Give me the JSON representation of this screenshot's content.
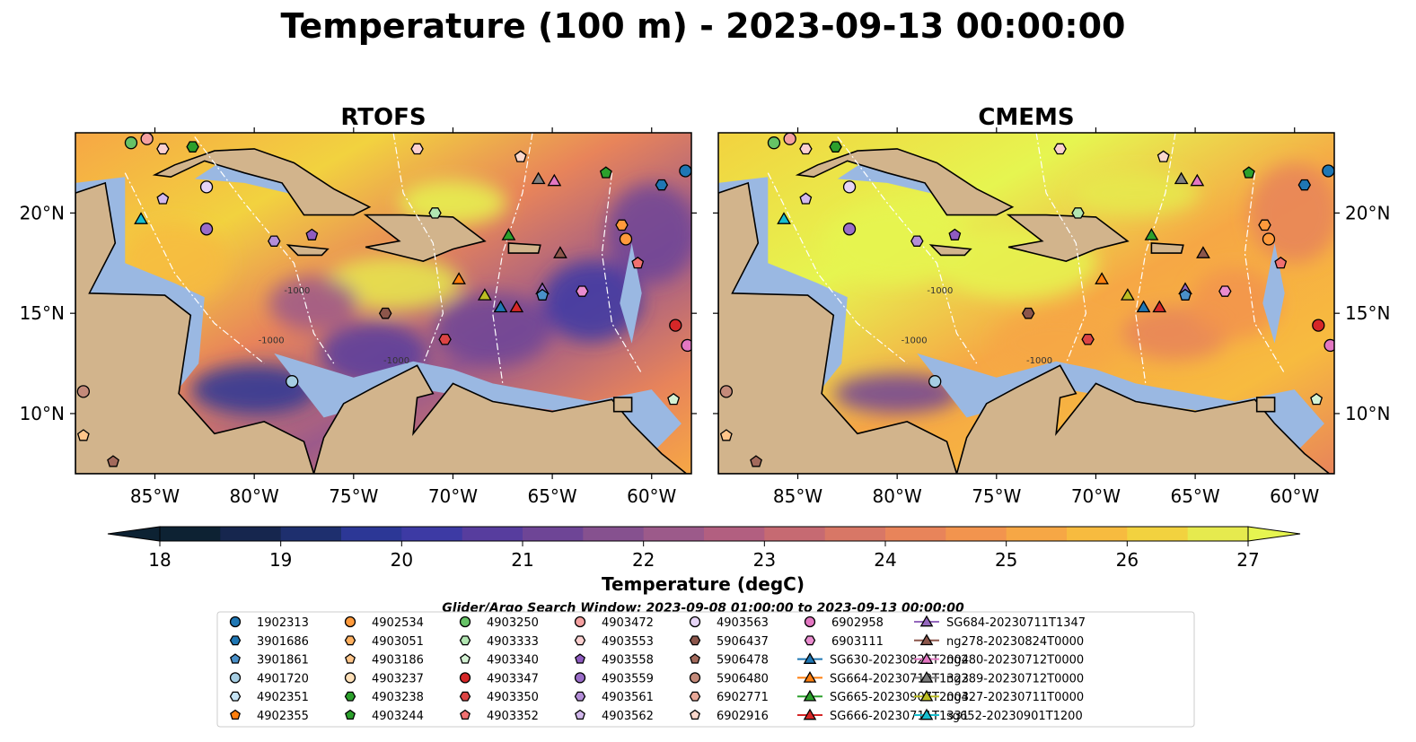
{
  "title": "Temperature (100 m) - 2023-09-13 00:00:00",
  "panels": [
    {
      "title": "RTOFS",
      "scheme": "rtofs"
    },
    {
      "title": "CMEMS",
      "scheme": "cmems"
    }
  ],
  "axes": {
    "lon_range": [
      -89,
      -58
    ],
    "lat_range": [
      7,
      24
    ],
    "x_ticks": [
      "85°W",
      "80°W",
      "75°W",
      "70°W",
      "65°W",
      "60°W"
    ],
    "x_tick_values": [
      -85,
      -80,
      -75,
      -70,
      -65,
      -60
    ],
    "y_ticks": [
      "10°N",
      "15°N",
      "20°N"
    ],
    "y_tick_values": [
      10,
      15,
      20
    ],
    "bathymetry_labels": [
      "-1000",
      "-1000",
      "-1000"
    ]
  },
  "colorbar": {
    "label": "Temperature (degC)",
    "ticks": [
      "18",
      "19",
      "20",
      "21",
      "22",
      "23",
      "24",
      "25",
      "26",
      "27"
    ],
    "range": [
      18,
      27
    ],
    "colors": [
      "#0d2233",
      "#16264e",
      "#1e2f6e",
      "#2c3796",
      "#3d3aa4",
      "#573d9e",
      "#6e4596",
      "#86518f",
      "#9c5a8a",
      "#b25f80",
      "#c66a72",
      "#d87766",
      "#e8845a",
      "#f2944e",
      "#f6a745",
      "#f7bb3f",
      "#f2d23f",
      "#e6ea4e",
      "#e6f550"
    ]
  },
  "search_window": "Glider/Argo Search Window: 2023-09-08 01:00:00 to 2023-09-13 00:00:00",
  "legend": {
    "items": [
      {
        "label": "1902313",
        "marker": "circle",
        "color": "#1f77b4"
      },
      {
        "label": "3901686",
        "marker": "hexagon",
        "color": "#1f77b4"
      },
      {
        "label": "3901861",
        "marker": "pentagon",
        "color": "#4a90c8"
      },
      {
        "label": "4901720",
        "marker": "circle",
        "color": "#a6cee3"
      },
      {
        "label": "4902351",
        "marker": "hexagon",
        "color": "#c6e4f5"
      },
      {
        "label": "4902355",
        "marker": "pentagon",
        "color": "#ff7f0e"
      },
      {
        "label": "4902534",
        "marker": "circle",
        "color": "#ff9a3c"
      },
      {
        "label": "4903051",
        "marker": "hexagon",
        "color": "#ffb060"
      },
      {
        "label": "4903186",
        "marker": "pentagon",
        "color": "#ffc58a"
      },
      {
        "label": "4903237",
        "marker": "circle",
        "color": "#ffe0b8"
      },
      {
        "label": "4903238",
        "marker": "hexagon",
        "color": "#2ca02c"
      },
      {
        "label": "4903244",
        "marker": "pentagon",
        "color": "#2ca02c"
      },
      {
        "label": "4903250",
        "marker": "circle",
        "color": "#66c266"
      },
      {
        "label": "4903333",
        "marker": "hexagon",
        "color": "#b2e6b2"
      },
      {
        "label": "4903340",
        "marker": "pentagon",
        "color": "#d4f2d4"
      },
      {
        "label": "4903347",
        "marker": "circle",
        "color": "#d62728"
      },
      {
        "label": "4903350",
        "marker": "hexagon",
        "color": "#dc4444"
      },
      {
        "label": "4903352",
        "marker": "pentagon",
        "color": "#f07070"
      },
      {
        "label": "4903472",
        "marker": "circle",
        "color": "#f4a0a0"
      },
      {
        "label": "4903553",
        "marker": "hexagon",
        "color": "#fbd0d0"
      },
      {
        "label": "4903558",
        "marker": "pentagon",
        "color": "#8f5bc0"
      },
      {
        "label": "4903559",
        "marker": "circle",
        "color": "#9a6cc8"
      },
      {
        "label": "4903561",
        "marker": "hexagon",
        "color": "#b48ed8"
      },
      {
        "label": "4903562",
        "marker": "pentagon",
        "color": "#d2b8ec"
      },
      {
        "label": "4903563",
        "marker": "circle",
        "color": "#e6d4f6"
      },
      {
        "label": "5906437",
        "marker": "hexagon",
        "color": "#8c564b"
      },
      {
        "label": "5906478",
        "marker": "pentagon",
        "color": "#a36a5c"
      },
      {
        "label": "5906480",
        "marker": "circle",
        "color": "#c48a7a"
      },
      {
        "label": "6902771",
        "marker": "hexagon",
        "color": "#e8a898"
      },
      {
        "label": "6902916",
        "marker": "pentagon",
        "color": "#fbd8cc"
      },
      {
        "label": "6902958",
        "marker": "circle",
        "color": "#e377c2"
      },
      {
        "label": "6903111",
        "marker": "hexagon",
        "color": "#ea8ccf"
      },
      {
        "label": "SG630-20230826T2004",
        "marker": "triangle",
        "color": "#1f77b4"
      },
      {
        "label": "SG664-20230719T1323",
        "marker": "triangle",
        "color": "#ff7f0e"
      },
      {
        "label": "SG665-20230907T2003",
        "marker": "triangle",
        "color": "#2ca02c"
      },
      {
        "label": "SG666-20230711T1331",
        "marker": "triangle",
        "color": "#d62728"
      },
      {
        "label": "SG684-20230711T1347",
        "marker": "triangle",
        "color": "#9467bd"
      },
      {
        "label": "ng278-20230824T0000",
        "marker": "triangle",
        "color": "#8c564b"
      },
      {
        "label": "ng280-20230712T0000",
        "marker": "triangle",
        "color": "#e377c2"
      },
      {
        "label": "ng289-20230712T0000",
        "marker": "triangle",
        "color": "#7f7f7f"
      },
      {
        "label": "ng427-20230711T0000",
        "marker": "triangle",
        "color": "#bcbd22"
      },
      {
        "label": "sg652-20230901T1200",
        "marker": "triangle",
        "color": "#17becf"
      }
    ]
  },
  "observations": [
    {
      "lon": -86.2,
      "lat": 23.5,
      "marker": "circle",
      "color": "#66c266"
    },
    {
      "lon": -85.4,
      "lat": 23.7,
      "marker": "circle",
      "color": "#f4a0a0"
    },
    {
      "lon": -84.6,
      "lat": 23.2,
      "marker": "hexagon",
      "color": "#fbd0d0"
    },
    {
      "lon": -83.1,
      "lat": 23.3,
      "marker": "hexagon",
      "color": "#2ca02c"
    },
    {
      "lon": -84.6,
      "lat": 20.7,
      "marker": "pentagon",
      "color": "#d2b8ec"
    },
    {
      "lon": -82.4,
      "lat": 21.3,
      "marker": "circle",
      "color": "#e6d4f6"
    },
    {
      "lon": -85.7,
      "lat": 19.7,
      "marker": "triangle",
      "color": "#17becf"
    },
    {
      "lon": -82.4,
      "lat": 19.2,
      "marker": "circle",
      "color": "#9a6cc8"
    },
    {
      "lon": -79.0,
      "lat": 18.6,
      "marker": "hexagon",
      "color": "#b48ed8"
    },
    {
      "lon": -77.1,
      "lat": 18.9,
      "marker": "pentagon",
      "color": "#8f5bc0"
    },
    {
      "lon": -71.8,
      "lat": 23.2,
      "marker": "hexagon",
      "color": "#fbd0d0"
    },
    {
      "lon": -70.9,
      "lat": 20.0,
      "marker": "hexagon",
      "color": "#b2e6b2"
    },
    {
      "lon": -66.6,
      "lat": 22.8,
      "marker": "pentagon",
      "color": "#fbd8cc"
    },
    {
      "lon": -65.7,
      "lat": 21.7,
      "marker": "triangle",
      "color": "#7f7f7f"
    },
    {
      "lon": -64.9,
      "lat": 21.6,
      "marker": "triangle",
      "color": "#e377c2"
    },
    {
      "lon": -62.3,
      "lat": 22.0,
      "marker": "pentagon",
      "color": "#2ca02c"
    },
    {
      "lon": -59.5,
      "lat": 21.4,
      "marker": "hexagon",
      "color": "#1f77b4"
    },
    {
      "lon": -58.3,
      "lat": 22.1,
      "marker": "circle",
      "color": "#1f77b4"
    },
    {
      "lon": -67.2,
      "lat": 18.9,
      "marker": "triangle",
      "color": "#2ca02c"
    },
    {
      "lon": -64.6,
      "lat": 18.0,
      "marker": "triangle",
      "color": "#8c564b"
    },
    {
      "lon": -61.5,
      "lat": 19.4,
      "marker": "hexagon",
      "color": "#ff9a3c"
    },
    {
      "lon": -61.3,
      "lat": 18.7,
      "marker": "circle",
      "color": "#ff9a3c"
    },
    {
      "lon": -60.7,
      "lat": 17.5,
      "marker": "pentagon",
      "color": "#f07070"
    },
    {
      "lon": -69.7,
      "lat": 16.7,
      "marker": "triangle",
      "color": "#ff7f0e"
    },
    {
      "lon": -68.4,
      "lat": 15.9,
      "marker": "triangle",
      "color": "#bcbd22"
    },
    {
      "lon": -67.6,
      "lat": 15.3,
      "marker": "triangle",
      "color": "#1f77b4"
    },
    {
      "lon": -66.8,
      "lat": 15.3,
      "marker": "triangle",
      "color": "#d62728"
    },
    {
      "lon": -65.5,
      "lat": 16.2,
      "marker": "triangle",
      "color": "#9467bd"
    },
    {
      "lon": -65.5,
      "lat": 15.9,
      "marker": "pentagon",
      "color": "#4a90c8"
    },
    {
      "lon": -63.5,
      "lat": 16.1,
      "marker": "hexagon",
      "color": "#ea8ccf"
    },
    {
      "lon": -73.4,
      "lat": 15.0,
      "marker": "hexagon",
      "color": "#8c564b"
    },
    {
      "lon": -70.4,
      "lat": 13.7,
      "marker": "hexagon",
      "color": "#dc4444"
    },
    {
      "lon": -78.1,
      "lat": 11.6,
      "marker": "circle",
      "color": "#a6cee3"
    },
    {
      "lon": -58.8,
      "lat": 14.4,
      "marker": "circle",
      "color": "#d62728"
    },
    {
      "lon": -58.2,
      "lat": 13.4,
      "marker": "circle",
      "color": "#e377c2"
    },
    {
      "lon": -58.9,
      "lat": 10.7,
      "marker": "pentagon",
      "color": "#d4f2d4"
    },
    {
      "lon": -88.6,
      "lat": 11.1,
      "marker": "circle",
      "color": "#c48a7a"
    },
    {
      "lon": -88.6,
      "lat": 8.9,
      "marker": "pentagon",
      "color": "#ffc58a"
    },
    {
      "lon": -87.1,
      "lat": 7.6,
      "marker": "pentagon",
      "color": "#a36a5c"
    }
  ]
}
